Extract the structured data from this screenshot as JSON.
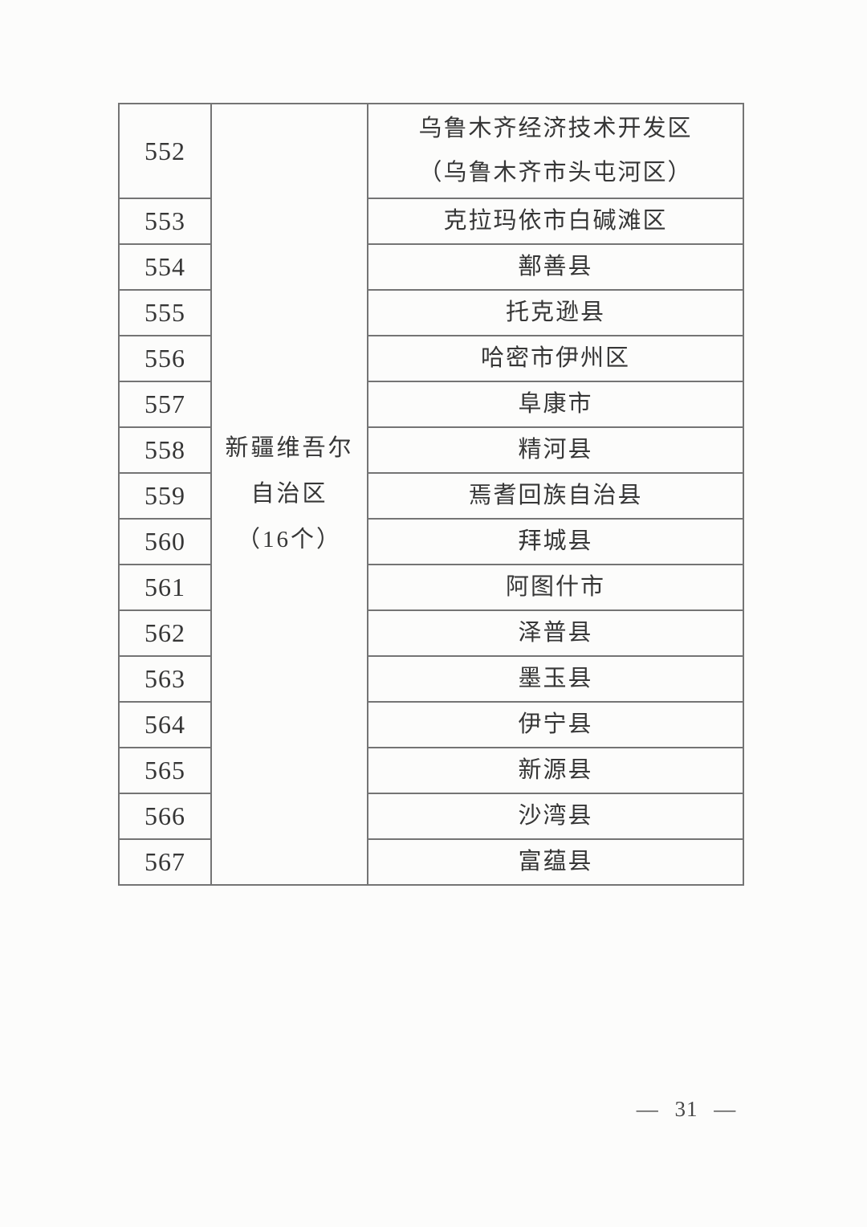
{
  "page": {
    "table": {
      "province": {
        "lines": [
          "新疆维吾尔",
          "自治区",
          "（16个）"
        ]
      },
      "rows": [
        {
          "no": "552",
          "name": "乌鲁木齐经济技术开发区",
          "name2": "（乌鲁木齐市头屯河区）"
        },
        {
          "no": "553",
          "name": "克拉玛依市白碱滩区"
        },
        {
          "no": "554",
          "name": "鄯善县"
        },
        {
          "no": "555",
          "name": "托克逊县"
        },
        {
          "no": "556",
          "name": "哈密市伊州区"
        },
        {
          "no": "557",
          "name": "阜康市"
        },
        {
          "no": "558",
          "name": "精河县"
        },
        {
          "no": "559",
          "name": "焉耆回族自治县"
        },
        {
          "no": "560",
          "name": "拜城县"
        },
        {
          "no": "561",
          "name": "阿图什市"
        },
        {
          "no": "562",
          "name": "泽普县"
        },
        {
          "no": "563",
          "name": "墨玉县"
        },
        {
          "no": "564",
          "name": "伊宁县"
        },
        {
          "no": "565",
          "name": "新源县"
        },
        {
          "no": "566",
          "name": "沙湾县"
        },
        {
          "no": "567",
          "name": "富蕴县"
        }
      ]
    },
    "footer": {
      "page_label": "— 31 —"
    }
  }
}
